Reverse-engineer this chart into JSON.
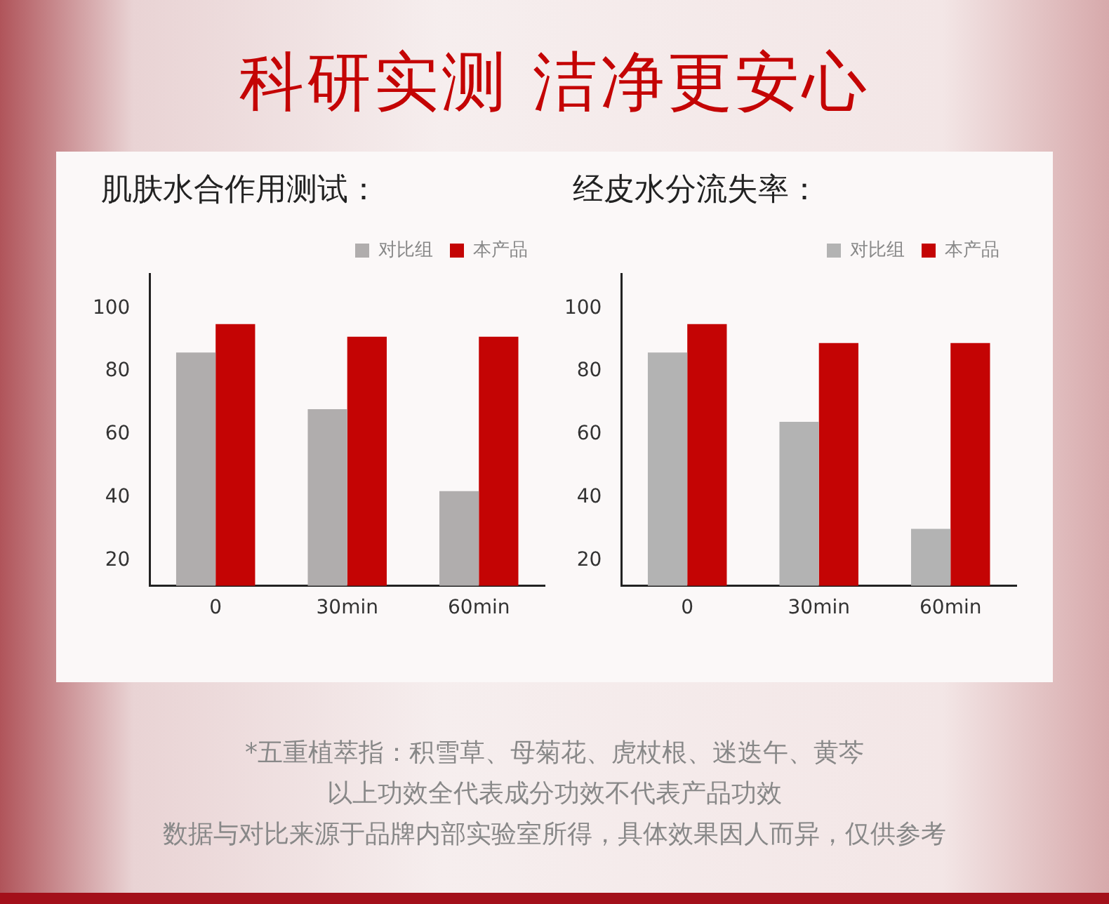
{
  "chart_data": [
    {
      "type": "other",
      "title": "科研实测 洁净更安心",
      "annotations": [
        "*五重植萃指：积雪草、母菊花、虎杖根、迷迭午、黄芩",
        "以上功效全代表成分功效不代表产品功效",
        "数据与对比来源于品牌内部实验室所得，具体效果因人而异，仅供参考"
      ]
    },
    {
      "type": "bar",
      "title": "肌肤水合作用测试：",
      "categories": [
        "0",
        "30min",
        "60min"
      ],
      "series": [
        {
          "name": "对比组",
          "color": "#b0adad",
          "values": [
            86,
            68,
            42
          ]
        },
        {
          "name": "本产品",
          "color": "#c40404",
          "values": [
            95,
            91,
            91
          ]
        }
      ],
      "ylim": [
        12,
        111
      ],
      "yticks": [
        20,
        40,
        60,
        80,
        100
      ],
      "grid": false,
      "legend": "top right"
    },
    {
      "type": "bar",
      "title": "经皮水分流失率：",
      "categories": [
        "0",
        "30min",
        "60min"
      ],
      "series": [
        {
          "name": "对比组",
          "color": "#b3b3b3",
          "values": [
            86,
            64,
            30
          ]
        },
        {
          "name": "本产品",
          "color": "#c40404",
          "values": [
            95,
            89,
            89
          ]
        }
      ],
      "ylim": [
        12,
        111
      ],
      "yticks": [
        20,
        40,
        60,
        80,
        100
      ],
      "grid": false,
      "legend": "top right"
    }
  ]
}
